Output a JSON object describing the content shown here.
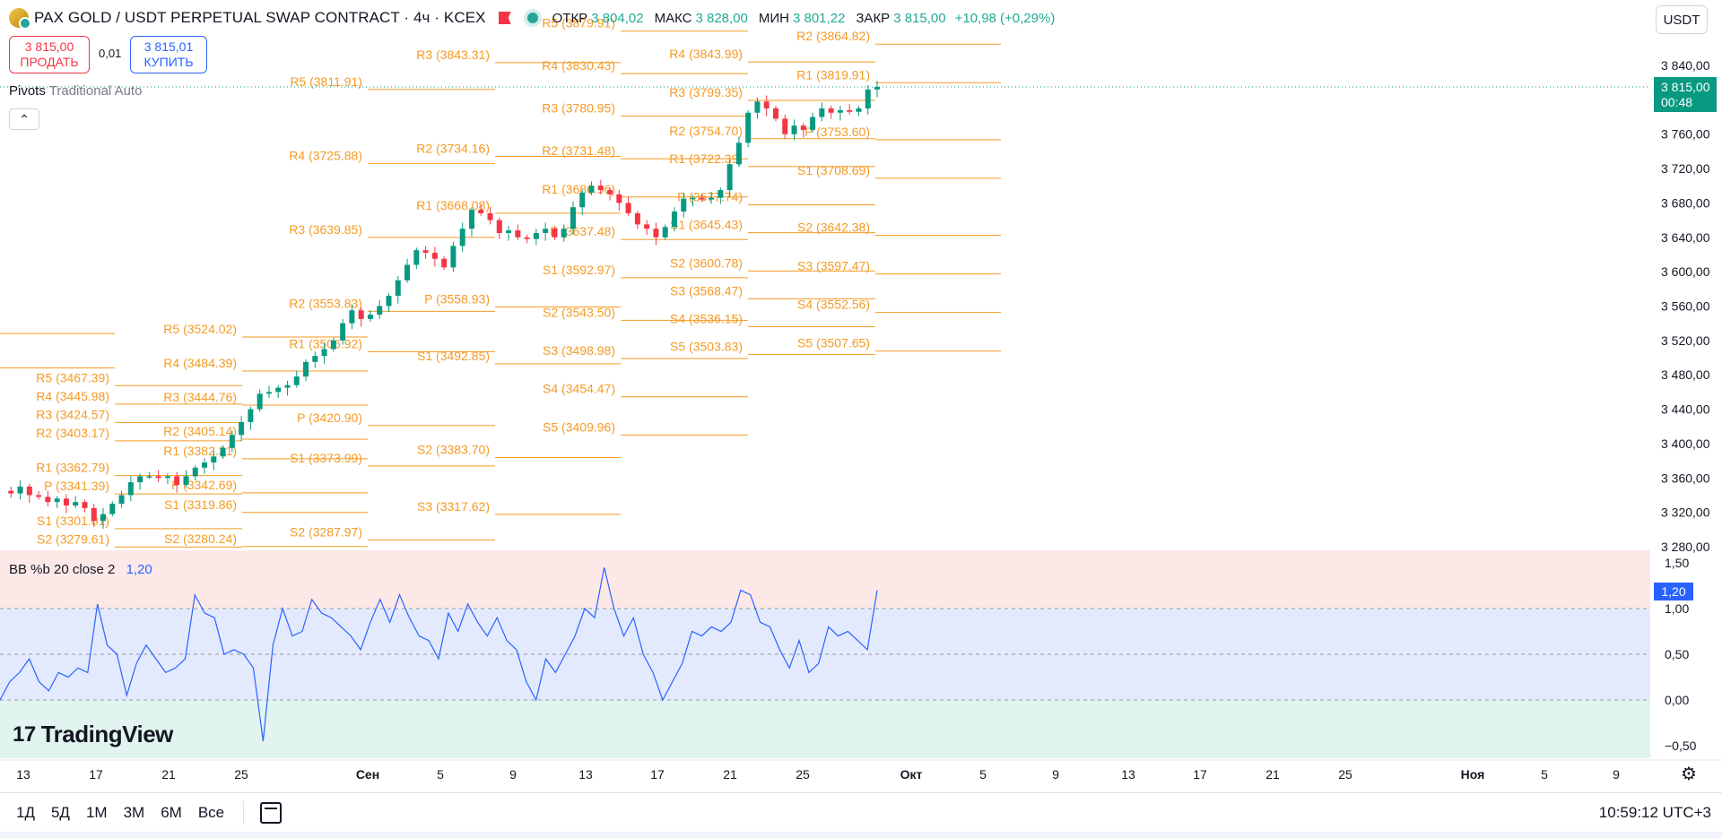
{
  "header": {
    "title": "PAX GOLD / USDT PERPETUAL SWAP CONTRACT · 4ч · KCEX",
    "ohlc": [
      {
        "key": "ОТКР",
        "value": "3 804,02"
      },
      {
        "key": "МАКС",
        "value": "3 828,00"
      },
      {
        "key": "МИН",
        "value": "3 801,22"
      },
      {
        "key": "ЗАКР",
        "value": "3 815,00"
      }
    ],
    "change": "+10,98 (+0,29%)",
    "currency": "USDT"
  },
  "trade": {
    "sell_price": "3 815,00",
    "sell_label": "ПРОДАТЬ",
    "spread": "0,01",
    "buy_price": "3 815,01",
    "buy_label": "КУПИТЬ"
  },
  "legend": {
    "pivots_name": "Pivots",
    "pivots_params": "Traditional Auto",
    "bb_name": "BB %b 20 close 2",
    "bb_value": "1,20"
  },
  "price_tag": {
    "price": "3 815,00",
    "countdown": "00:48"
  },
  "bb_tag": "1,20",
  "logo_text": "TradingView",
  "bottom": {
    "ranges": [
      "1Д",
      "5Д",
      "1М",
      "3М",
      "6М",
      "Все"
    ],
    "clock": "10:59:12 UTC+3"
  },
  "colors": {
    "up": "#089981",
    "down": "#f23645",
    "pivot": "#f59a23",
    "bb_line": "#2962ff"
  },
  "chart_data": [
    {
      "type": "line",
      "title": "PAX GOLD / USDT PERPETUAL SWAP CONTRACT · 4ч · KCEX",
      "ylim": [
        3260,
        3880
      ],
      "y_ticks": [
        "3 840,00",
        "3 800,00",
        "3 760,00",
        "3 720,00",
        "3 680,00",
        "3 640,00",
        "3 600,00",
        "3 560,00",
        "3 520,00",
        "3 480,00",
        "3 440,00",
        "3 400,00",
        "3 360,00",
        "3 320,00",
        "3 280,00"
      ],
      "x_ticks": [
        "13",
        "17",
        "21",
        "25",
        "Сен",
        "5",
        "9",
        "13",
        "17",
        "21",
        "25",
        "Окт",
        "5",
        "9",
        "13",
        "17",
        "21",
        "25",
        "Ноя",
        "5",
        "9"
      ],
      "last_price": 3815,
      "price_path": [
        3345,
        3342,
        3350,
        3340,
        3338,
        3332,
        3336,
        3328,
        3332,
        3325,
        3310,
        3318,
        3330,
        3340,
        3355,
        3362,
        3362,
        3360,
        3362,
        3352,
        3362,
        3372,
        3378,
        3385,
        3395,
        3410,
        3425,
        3440,
        3458,
        3460,
        3465,
        3468,
        3478,
        3495,
        3502,
        3510,
        3520,
        3540,
        3555,
        3545,
        3550,
        3560,
        3572,
        3590,
        3608,
        3625,
        3622,
        3615,
        3605,
        3630,
        3650,
        3672,
        3668,
        3660,
        3645,
        3648,
        3640,
        3638,
        3645,
        3650,
        3640,
        3650,
        3675,
        3692,
        3700,
        3695,
        3690,
        3680,
        3668,
        3655,
        3650,
        3640,
        3652,
        3670,
        3685,
        3686,
        3684,
        3686,
        3695,
        3725,
        3750,
        3785,
        3798,
        3790,
        3778,
        3760,
        3770,
        3765,
        3780,
        3790,
        3785,
        3788,
        3786,
        3790,
        3812,
        3815
      ],
      "pivot_groups": [
        {
          "levels": [
            {
              "label": "R5 (3467.39)",
              "value": 3467.39
            },
            {
              "label": "R4 (3445.98)",
              "value": 3445.98
            },
            {
              "label": "R3 (3424.57)",
              "value": 3424.57
            },
            {
              "label": "R2 (3403.17)",
              "value": 3403.17
            },
            {
              "label": "R1 (3362.79)",
              "value": 3362.79
            },
            {
              "label": "P (3341.39)",
              "value": 3341.39
            },
            {
              "label": "S1 (3301.01)",
              "value": 3301.01
            },
            {
              "label": "S2 (3279.61)",
              "value": 3279.61
            }
          ]
        },
        {
          "levels": [
            {
              "label": "R5 (3524.02)",
              "value": 3524.02
            },
            {
              "label": "R4 (3484.39)",
              "value": 3484.39
            },
            {
              "label": "R3 (3444.76)",
              "value": 3444.76
            },
            {
              "label": "R2 (3405.14)",
              "value": 3405.14
            },
            {
              "label": "R1 (3382.31)",
              "value": 3382.31
            },
            {
              "label": "P (3342.69)",
              "value": 3342.69
            },
            {
              "label": "S1 (3319.86)",
              "value": 3319.86
            },
            {
              "label": "S2 (3280.24)",
              "value": 3280.24
            }
          ]
        },
        {
          "levels": [
            {
              "label": "R5 (3811.91)",
              "value": 3811.91
            },
            {
              "label": "R4 (3725.88)",
              "value": 3725.88
            },
            {
              "label": "R3 (3639.85)",
              "value": 3639.85
            },
            {
              "label": "R2 (3553.83)",
              "value": 3553.83
            },
            {
              "label": "R1 (3506.92)",
              "value": 3506.92
            },
            {
              "label": "P (3420.90)",
              "value": 3420.9
            },
            {
              "label": "S1 (3373.99)",
              "value": 3373.99
            },
            {
              "label": "S2 (3287.97)",
              "value": 3287.97
            }
          ]
        },
        {
          "levels": [
            {
              "label": "R3 (3843.31)",
              "value": 3843.31
            },
            {
              "label": "R2 (3734.16)",
              "value": 3734.16
            },
            {
              "label": "R1 (3668.08)",
              "value": 3668.08
            },
            {
              "label": "P (3558.93)",
              "value": 3558.93
            },
            {
              "label": "S1 (3492.85)",
              "value": 3492.85
            },
            {
              "label": "S2 (3383.70)",
              "value": 3383.7
            },
            {
              "label": "S3 (3317.62)",
              "value": 3317.62
            }
          ]
        },
        {
          "levels": [
            {
              "label": "R5 (3879.91)",
              "value": 3879.91
            },
            {
              "label": "R4 (3830.43)",
              "value": 3830.43
            },
            {
              "label": "R3 (3780.95)",
              "value": 3780.95
            },
            {
              "label": "R2 (3731.48)",
              "value": 3731.48
            },
            {
              "label": "R1 (3686.96)",
              "value": 3686.96
            },
            {
              "label": "P (3637.48)",
              "value": 3637.48
            },
            {
              "label": "S1 (3592.97)",
              "value": 3592.97
            },
            {
              "label": "S2 (3543.50)",
              "value": 3543.5
            },
            {
              "label": "S3 (3498.98)",
              "value": 3498.98
            },
            {
              "label": "S4 (3454.47)",
              "value": 3454.47
            },
            {
              "label": "S5 (3409.96)",
              "value": 3409.96
            }
          ]
        },
        {
          "levels": [
            {
              "label": "R4 (3843.99)",
              "value": 3843.99
            },
            {
              "label": "R3 (3799.35)",
              "value": 3799.35
            },
            {
              "label": "R2 (3754.70)",
              "value": 3754.7
            },
            {
              "label": "R1 (3722.39)",
              "value": 3722.39
            },
            {
              "label": "P (3677.74)",
              "value": 3677.74
            },
            {
              "label": "S1 (3645.43)",
              "value": 3645.43
            },
            {
              "label": "S2 (3600.78)",
              "value": 3600.78
            },
            {
              "label": "S3 (3568.47)",
              "value": 3568.47
            },
            {
              "label": "S4 (3536.15)",
              "value": 3536.15
            },
            {
              "label": "S5 (3503.83)",
              "value": 3503.83
            }
          ]
        },
        {
          "levels": [
            {
              "label": "R2 (3864.82)",
              "value": 3864.82
            },
            {
              "label": "R1 (3819.91)",
              "value": 3819.91
            },
            {
              "label": "P (3753.60)",
              "value": 3753.6
            },
            {
              "label": "S1 (3708.69)",
              "value": 3708.69
            },
            {
              "label": "S2 (3642.38)",
              "value": 3642.38
            },
            {
              "label": "S3 (3597.47)",
              "value": 3597.47
            },
            {
              "label": "S4 (3552.56)",
              "value": 3552.56
            },
            {
              "label": "S5 (3507.65)",
              "value": 3507.65
            }
          ]
        }
      ]
    },
    {
      "type": "line",
      "title": "BB %b 20 close 2",
      "ylim": [
        -0.55,
        1.55
      ],
      "y_ticks": [
        "1,50",
        "1,00",
        "0,50",
        "0,00",
        "−0,50"
      ],
      "bands": {
        "upper": 1.0,
        "middle": 0.5,
        "lower": 0.0
      },
      "series": [
        {
          "values": [
            0.0,
            0.2,
            0.3,
            0.45,
            0.2,
            0.1,
            0.3,
            0.25,
            0.35,
            0.3,
            1.05,
            0.6,
            0.5,
            0.05,
            0.4,
            0.6,
            0.45,
            0.3,
            0.35,
            0.45,
            1.15,
            0.95,
            0.9,
            0.5,
            0.55,
            0.5,
            0.35,
            -0.45,
            0.6,
            1.0,
            0.7,
            0.75,
            1.1,
            0.95,
            0.9,
            0.8,
            0.7,
            0.55,
            0.85,
            1.1,
            0.85,
            1.15,
            0.9,
            0.7,
            0.65,
            0.45,
            0.95,
            0.75,
            1.05,
            0.85,
            0.7,
            0.9,
            0.65,
            0.55,
            0.2,
            0.0,
            0.45,
            0.3,
            0.5,
            0.7,
            1.0,
            0.9,
            1.45,
            1.0,
            0.7,
            0.9,
            0.5,
            0.3,
            0.0,
            0.2,
            0.4,
            0.75,
            0.7,
            0.8,
            0.75,
            0.85,
            1.2,
            1.15,
            0.85,
            0.8,
            0.55,
            0.35,
            0.65,
            0.3,
            0.4,
            0.8,
            0.7,
            0.75,
            0.65,
            0.55,
            1.2
          ]
        }
      ]
    }
  ]
}
